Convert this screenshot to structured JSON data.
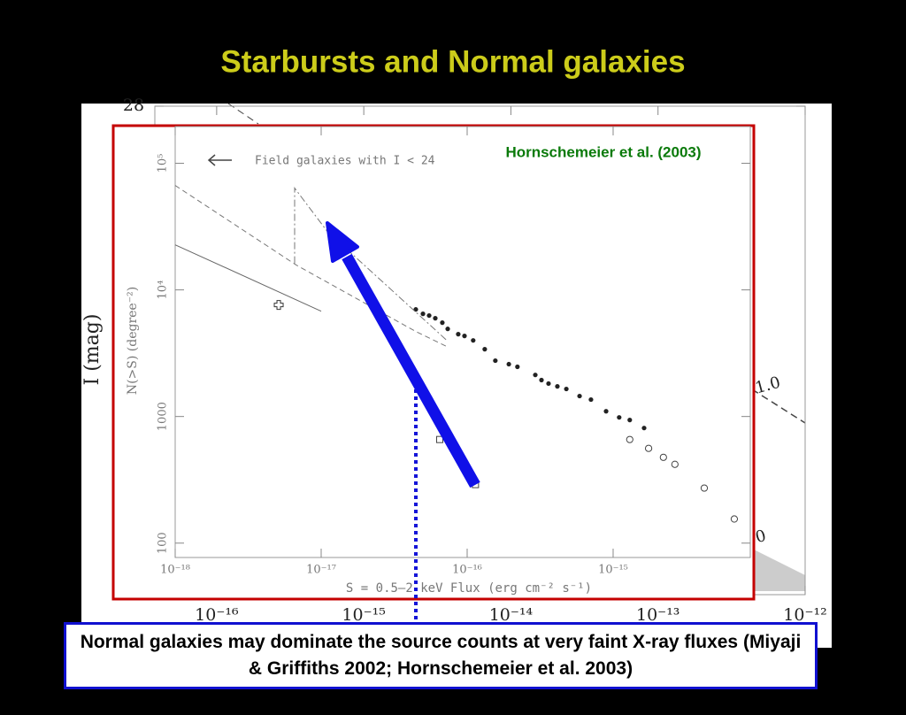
{
  "title": "Starbursts and Normal galaxies",
  "caption": "Normal galaxies may dominate the source counts at very faint X-ray fluxes (Miyaji & Griffiths 2002; Hornschemeier et al. 2003)",
  "chart_data": [
    {
      "type": "line",
      "ylabel": "I (mag)",
      "xlog": true,
      "xlim": [
        3.8e-17,
        1e-12
      ],
      "ylim": [
        18,
        28
      ],
      "xticks": [
        {
          "value": 1e-16,
          "label": "10⁻¹⁶"
        },
        {
          "value": 1e-15,
          "label": "10⁻¹⁵"
        },
        {
          "value": 1e-14,
          "label": "10⁻¹⁴"
        },
        {
          "value": 1e-13,
          "label": "10⁻¹³"
        },
        {
          "value": 1e-12,
          "label": "10⁻¹²"
        }
      ],
      "yticks": [
        28
      ],
      "annotations": [
        "1.0",
        "0"
      ],
      "series": []
    },
    {
      "type": "scatter",
      "xlabel": "S = 0.5–2 keV Flux (erg cm⁻² s⁻¹)",
      "ylabel": "N(>S) (degree⁻²)",
      "xlog": true,
      "ylog": true,
      "xlim": [
        1e-18,
        8.7e-15
      ],
      "ylim": [
        77,
        195000
      ],
      "xticks": [
        {
          "value": 1e-18,
          "label": "10⁻¹⁸"
        },
        {
          "value": 1e-17,
          "label": "10⁻¹⁷"
        },
        {
          "value": 1e-16,
          "label": "10⁻¹⁶"
        },
        {
          "value": 1e-15,
          "label": "10⁻¹⁵"
        }
      ],
      "yticks": [
        {
          "value": 100000,
          "label": "10⁵"
        },
        {
          "value": 10000,
          "label": "10⁴"
        },
        1000,
        100
      ],
      "annotations": [
        "Field galaxies with I < 24",
        "Hornschemeier et al. (2003)"
      ],
      "series": [
        {
          "marker": "dot",
          "color": "#222222",
          "x": [
            4.45e-17,
            4.98e-17,
            5.49e-17,
            6.05e-17,
            6.76e-17,
            7.36e-17,
            8.69e-17,
            9.59e-17,
            1.1e-16,
            1.32e-16,
            1.56e-16,
            1.93e-16,
            2.21e-16,
            2.93e-16,
            3.23e-16,
            3.61e-16,
            4.15e-16,
            4.78e-16,
            5.89e-16,
            7.05e-16,
            8.95e-16,
            1.1e-15,
            1.3e-15,
            1.63e-15
          ],
          "values": [
            7010,
            6470,
            6270,
            5970,
            5510,
            4920,
            4470,
            4330,
            3990,
            3400,
            2760,
            2590,
            2470,
            2130,
            1940,
            1820,
            1730,
            1650,
            1450,
            1360,
            1100,
            984,
            938,
            811
          ]
        },
        {
          "marker": "circle",
          "color": "#444444",
          "x": [
            1.3e-15,
            1.75e-15,
            2.21e-15,
            2.65e-15,
            4.21e-15,
            6.76e-15
          ],
          "values": [
            658,
            560,
            476,
            419,
            272,
            155
          ]
        },
        {
          "marker": "square",
          "color": "#444444",
          "x": [
            6.49e-17,
            1.14e-16
          ],
          "values": [
            658,
            290
          ]
        },
        {
          "marker": "cross",
          "color": "#333333",
          "x": [
            5.12e-18
          ],
          "values": [
            7600
          ]
        },
        {
          "marker": "none",
          "color": "#666666",
          "dash": "none",
          "x": [
            1e-18,
            1e-17
          ],
          "values": [
            22700,
            6790
          ]
        },
        {
          "marker": "none",
          "color": "#777777",
          "dash": "6 4",
          "x": [
            1e-18,
            6.76e-18,
            4.45e-17,
            7.26e-17
          ],
          "values": [
            66800,
            15700,
            4690,
            3570
          ]
        },
        {
          "marker": "none",
          "color": "#777777",
          "dash": "8 3 2 3",
          "x": [
            6.58e-18,
            6.58e-18,
            1.1e-17,
            7.26e-17
          ],
          "values": [
            16200,
            63700,
            29000,
            3990
          ]
        }
      ]
    }
  ]
}
